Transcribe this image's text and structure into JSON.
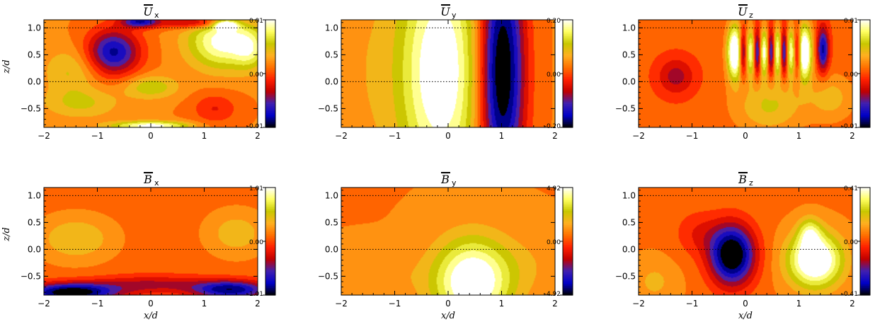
{
  "figure": {
    "shared_xlabel": "x/d",
    "shared_ylabel": "z/d",
    "dashed_levels": [
      1.0,
      0.0
    ],
    "colormap": [
      "#000000",
      "#0000c8",
      "#4020b0",
      "#c00000",
      "#ff2000",
      "#ff7000",
      "#ffb020",
      "#c8c800",
      "#ffff60",
      "#ffffff"
    ]
  },
  "chart_data": [
    {
      "type": "heatmap",
      "panel": "Ux",
      "title_symbol": "U",
      "title_sub": "x",
      "xlim": [
        -2,
        2
      ],
      "ylim": [
        -0.85,
        1.15
      ],
      "xticks": [
        "−2",
        "−1",
        "0",
        "1",
        "2"
      ],
      "yticks": [
        "−0.5",
        "0.0",
        "0.5",
        "1.0"
      ],
      "colorbar": {
        "max": "0.01",
        "mid": "0.00",
        "min": "-0.01",
        "range": [
          -0.01,
          0.01
        ]
      },
      "xlabel": "",
      "ylabel": "z/d",
      "background": 0.0015,
      "blobs": [
        {
          "x": -0.7,
          "z": 0.55,
          "sx": 0.35,
          "sz": 0.3,
          "a": -0.009
        },
        {
          "x": -1.5,
          "z": 0.2,
          "sx": 0.35,
          "sz": 0.3,
          "a": 0.003
        },
        {
          "x": 1.35,
          "z": 0.75,
          "sx": 0.45,
          "sz": 0.35,
          "a": 0.008
        },
        {
          "x": 1.85,
          "z": 0.6,
          "sx": 0.2,
          "sz": 0.25,
          "a": 0.004
        },
        {
          "x": 0.0,
          "z": -0.1,
          "sx": 0.35,
          "sz": 0.15,
          "a": 0.004
        },
        {
          "x": 0.0,
          "z": -0.82,
          "sx": 0.5,
          "sz": 0.06,
          "a": 0.008
        },
        {
          "x": -1.3,
          "z": -0.4,
          "sx": 0.5,
          "sz": 0.2,
          "a": 0.003
        },
        {
          "x": 1.2,
          "z": -0.5,
          "sx": 0.3,
          "sz": 0.2,
          "a": -0.003
        },
        {
          "x": -0.2,
          "z": 1.12,
          "sx": 0.25,
          "sz": 0.08,
          "a": -0.008
        },
        {
          "x": 0.9,
          "z": 1.1,
          "sx": 0.5,
          "sz": 0.08,
          "a": -0.006
        },
        {
          "x": 1.4,
          "z": 1.05,
          "sx": 0.15,
          "sz": 0.06,
          "a": 0.01
        }
      ]
    },
    {
      "type": "heatmap",
      "panel": "Uy",
      "title_symbol": "U",
      "title_sub": "y",
      "xlim": [
        -2,
        2
      ],
      "ylim": [
        -0.85,
        1.15
      ],
      "xticks": [
        "−2",
        "−1",
        "0",
        "1",
        "2"
      ],
      "yticks": [
        "−0.5",
        "0.0",
        "0.5",
        "1.0"
      ],
      "colorbar": {
        "max": "0.20",
        "mid": "0.00",
        "min": "-0.20",
        "range": [
          -0.2,
          0.2
        ]
      },
      "xlabel": "",
      "ylabel": "",
      "background": 0.03,
      "blobs": [
        {
          "x": -0.15,
          "z": 0.2,
          "sx": 0.55,
          "sz": 1.6,
          "a": 0.18
        },
        {
          "x": 1.0,
          "z": 0.2,
          "sx": 0.3,
          "sz": 1.6,
          "a": -0.25
        },
        {
          "x": -1.6,
          "z": 0.2,
          "sx": 0.4,
          "sz": 1.6,
          "a": 0.02
        }
      ]
    },
    {
      "type": "heatmap",
      "panel": "Uz",
      "title_symbol": "U",
      "title_sub": "z",
      "xlim": [
        -2,
        2
      ],
      "ylim": [
        -0.85,
        1.15
      ],
      "xticks": [
        "−2",
        "−1",
        "0",
        "1",
        "2"
      ],
      "yticks": [
        "−0.5",
        "0.0",
        "0.5",
        "1.0"
      ],
      "colorbar": {
        "max": "0.01",
        "mid": "0.00",
        "min": "-0.01",
        "range": [
          -0.01,
          0.01
        ]
      },
      "xlabel": "",
      "ylabel": "",
      "background": 0.0005,
      "blobs": [
        {
          "x": -0.2,
          "z": 0.55,
          "sx": 0.1,
          "sz": 0.35,
          "a": 0.012
        },
        {
          "x": 1.1,
          "z": 0.55,
          "sx": 0.1,
          "sz": 0.35,
          "a": 0.012
        },
        {
          "x": 0.1,
          "z": 0.55,
          "sx": 0.06,
          "sz": 0.3,
          "a": 0.008
        },
        {
          "x": 0.35,
          "z": 0.55,
          "sx": 0.06,
          "sz": 0.3,
          "a": 0.009
        },
        {
          "x": 0.6,
          "z": 0.55,
          "sx": 0.06,
          "sz": 0.3,
          "a": 0.009
        },
        {
          "x": 0.85,
          "z": 0.55,
          "sx": 0.06,
          "sz": 0.3,
          "a": 0.008
        },
        {
          "x": -0.05,
          "z": 0.55,
          "sx": 0.05,
          "sz": 0.3,
          "a": -0.008
        },
        {
          "x": 0.22,
          "z": 0.55,
          "sx": 0.05,
          "sz": 0.3,
          "a": -0.008
        },
        {
          "x": 0.48,
          "z": 0.55,
          "sx": 0.05,
          "sz": 0.3,
          "a": -0.008
        },
        {
          "x": 0.72,
          "z": 0.55,
          "sx": 0.05,
          "sz": 0.3,
          "a": -0.008
        },
        {
          "x": 0.97,
          "z": 0.55,
          "sx": 0.05,
          "sz": 0.3,
          "a": -0.008
        },
        {
          "x": 1.45,
          "z": 0.6,
          "sx": 0.08,
          "sz": 0.3,
          "a": -0.008
        },
        {
          "x": 0.45,
          "z": -0.45,
          "sx": 0.45,
          "sz": 0.35,
          "a": 0.004
        },
        {
          "x": -1.3,
          "z": 0.1,
          "sx": 0.25,
          "sz": 0.25,
          "a": -0.004
        },
        {
          "x": 1.6,
          "z": -0.3,
          "sx": 0.3,
          "sz": 0.3,
          "a": 0.003
        }
      ]
    },
    {
      "type": "heatmap",
      "panel": "Bx",
      "title_symbol": "B",
      "title_sub": "x",
      "xlim": [
        -2,
        2
      ],
      "ylim": [
        -0.85,
        1.15
      ],
      "xticks": [
        "−2",
        "−1",
        "0",
        "1",
        "2"
      ],
      "yticks": [
        "−0.5",
        "0.0",
        "0.5",
        "1.0"
      ],
      "colorbar": {
        "max": "1.01",
        "mid": "0.00",
        "min": "-1.01",
        "range": [
          -1.01,
          1.01
        ]
      },
      "xlabel": "x/d",
      "ylabel": "z/d",
      "background": 0.08,
      "blobs": [
        {
          "x": -1.4,
          "z": 0.2,
          "sx": 0.5,
          "sz": 0.3,
          "a": 0.35
        },
        {
          "x": 1.6,
          "z": 0.3,
          "sx": 0.4,
          "sz": 0.3,
          "a": 0.3
        },
        {
          "x": -1.5,
          "z": -0.8,
          "sx": 0.6,
          "sz": 0.12,
          "a": -1.1
        },
        {
          "x": 1.5,
          "z": -0.75,
          "sx": 0.5,
          "sz": 0.12,
          "a": -0.9
        },
        {
          "x": 0.0,
          "z": -0.65,
          "sx": 0.8,
          "sz": 0.12,
          "a": -0.4
        }
      ]
    },
    {
      "type": "heatmap",
      "panel": "By",
      "title_symbol": "B",
      "title_sub": "y",
      "xlim": [
        -2,
        2
      ],
      "ylim": [
        -0.85,
        1.15
      ],
      "xticks": [
        "−2",
        "−1",
        "0",
        "1",
        "2"
      ],
      "yticks": [
        "−0.5",
        "0.0",
        "0.5",
        "1.0"
      ],
      "colorbar": {
        "max": "4.92",
        "mid": "0.00",
        "min": "-4.92",
        "range": [
          -4.92,
          4.92
        ]
      },
      "xlabel": "x/d",
      "ylabel": "",
      "background": 0.7,
      "blobs": [
        {
          "x": 0.45,
          "z": -0.6,
          "sx": 0.5,
          "sz": 0.55,
          "a": 4.8
        },
        {
          "x": -1.3,
          "z": -0.5,
          "sx": 0.6,
          "sz": 0.3,
          "a": 0.6
        },
        {
          "x": 1.5,
          "z": -0.3,
          "sx": 0.5,
          "sz": 0.4,
          "a": 0.5
        }
      ]
    },
    {
      "type": "heatmap",
      "panel": "Bz",
      "title_symbol": "B",
      "title_sub": "z",
      "xlim": [
        -2,
        2
      ],
      "ylim": [
        -0.85,
        1.15
      ],
      "xticks": [
        "−2",
        "−1",
        "0",
        "1",
        "2"
      ],
      "yticks": [
        "−0.5",
        "0.0",
        "0.5",
        "1.0"
      ],
      "colorbar": {
        "max": "0.41",
        "mid": "0.00",
        "min": "-0.41",
        "range": [
          -0.41,
          0.41
        ]
      },
      "xlabel": "x/d",
      "ylabel": "",
      "background": 0.05,
      "blobs": [
        {
          "x": -0.25,
          "z": -0.1,
          "sx": 0.3,
          "sz": 0.4,
          "a": -0.5
        },
        {
          "x": 1.3,
          "z": -0.2,
          "sx": 0.35,
          "sz": 0.35,
          "a": 0.45
        },
        {
          "x": 1.2,
          "z": 0.3,
          "sx": 0.15,
          "sz": 0.2,
          "a": 0.2
        },
        {
          "x": -0.9,
          "z": 0.3,
          "sx": 0.3,
          "sz": 0.3,
          "a": -0.1
        },
        {
          "x": -1.7,
          "z": -0.6,
          "sx": 0.3,
          "sz": 0.3,
          "a": 0.08
        }
      ]
    }
  ]
}
